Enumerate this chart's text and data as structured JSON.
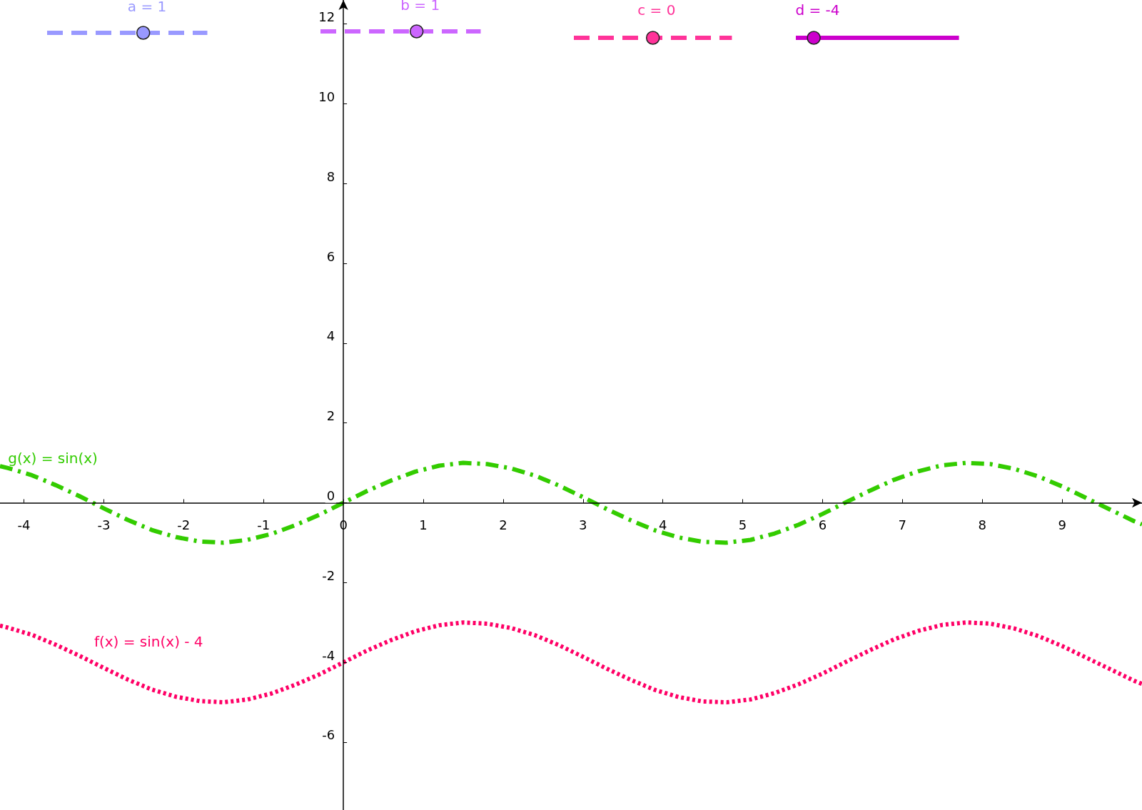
{
  "chart_data": {
    "type": "line",
    "xlim": [
      -4.3,
      10
    ],
    "ylim": [
      -7.7,
      12.6
    ],
    "xticks": [
      -4,
      -3,
      -2,
      -1,
      0,
      1,
      2,
      3,
      4,
      5,
      6,
      7,
      8,
      9
    ],
    "yticks": [
      -6,
      -4,
      -2,
      0,
      2,
      4,
      6,
      8,
      10,
      12
    ],
    "grid": false,
    "legend": false,
    "marker": "none",
    "x": [
      -4.3,
      -4.2,
      -3.9,
      -3.6,
      -3.3,
      -3.0,
      -2.7,
      -2.4,
      -2.1,
      -1.8,
      -1.5,
      -1.2,
      -0.9,
      -0.6,
      -0.3,
      0,
      0.3,
      0.6,
      0.9,
      1.2,
      1.5,
      1.8,
      2.1,
      2.4,
      2.7,
      3.0,
      3.3,
      3.6,
      3.9,
      4.2,
      4.5,
      4.8,
      5.1,
      5.4,
      5.7,
      6.0,
      6.3,
      6.6,
      6.9,
      7.2,
      7.5,
      7.8,
      8.1,
      8.4,
      8.7,
      9.0,
      9.3,
      9.6,
      9.9,
      10.0
    ],
    "series": [
      {
        "name": "g(x) = sin(x)",
        "color": "#33cc00",
        "line_style": "dashed",
        "values": [
          0.92,
          0.87,
          0.69,
          0.44,
          0.16,
          -0.14,
          -0.43,
          -0.68,
          -0.86,
          -0.97,
          -1.0,
          -0.93,
          -0.78,
          -0.56,
          -0.3,
          0,
          0.3,
          0.56,
          0.78,
          0.93,
          1.0,
          0.97,
          0.86,
          0.68,
          0.43,
          0.14,
          -0.16,
          -0.44,
          -0.69,
          -0.87,
          -0.98,
          -1.0,
          -0.93,
          -0.77,
          -0.55,
          -0.28,
          0.02,
          0.31,
          0.58,
          0.79,
          0.94,
          1.0,
          0.97,
          0.85,
          0.66,
          0.41,
          0.12,
          -0.17,
          -0.46,
          -0.54
        ]
      },
      {
        "name": "f(x) = sin(x) - 4",
        "color": "#ff0066",
        "line_style": "dotted",
        "values": [
          -3.08,
          -3.13,
          -3.31,
          -3.56,
          -3.84,
          -4.14,
          -4.43,
          -4.68,
          -4.86,
          -4.97,
          -5.0,
          -4.93,
          -4.78,
          -4.56,
          -4.3,
          -4,
          -3.7,
          -3.44,
          -3.22,
          -3.07,
          -3.0,
          -3.03,
          -3.14,
          -3.32,
          -3.57,
          -3.86,
          -4.16,
          -4.44,
          -4.69,
          -4.87,
          -4.98,
          -5.0,
          -4.93,
          -4.77,
          -4.55,
          -4.28,
          -3.98,
          -3.69,
          -3.42,
          -3.21,
          -3.06,
          -3.0,
          -3.03,
          -3.15,
          -3.34,
          -3.59,
          -3.88,
          -4.17,
          -4.46,
          -4.54
        ]
      }
    ],
    "annotations": [
      "a = 1",
      "b = 1",
      "c = 0",
      "d = -4"
    ]
  }
}
